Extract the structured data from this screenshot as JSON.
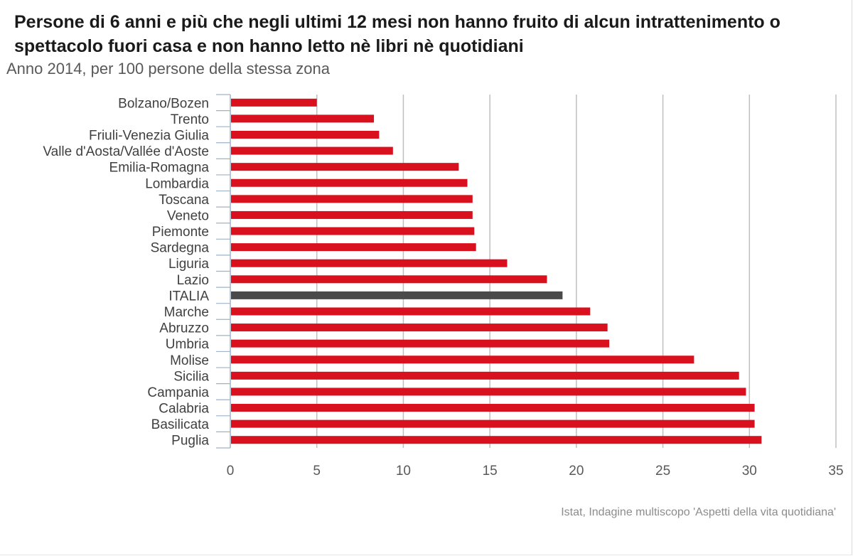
{
  "header": {
    "title": "Persone di 6 anni e più che negli ultimi 12 mesi non hanno fruito di alcun intrattenimento o spettacolo fuori casa e non hanno letto nè libri nè quotidiani",
    "subtitle": "Anno 2014, per 100 persone della stessa zona"
  },
  "footer": {
    "source": "Istat, Indagine multiscopo 'Aspetti della vita quotidiana'"
  },
  "colors": {
    "bar": "#d9101d",
    "highlight": "#4a4a4a",
    "grid": "#bfbfbf",
    "axis": "#9fb3c8"
  },
  "chart_data": {
    "type": "bar",
    "orientation": "horizontal",
    "title": "Persone di 6 anni e più che negli ultimi 12 mesi non hanno fruito di alcun intrattenimento o spettacolo fuori casa e non hanno letto nè libri nè quotidiani",
    "subtitle": "Anno 2014, per 100 persone della stessa zona",
    "categories": [
      "Bolzano/Bozen",
      "Trento",
      "Friuli-Venezia Giulia",
      "Valle d'Aosta/Vallée d'Aoste",
      "Emilia-Romagna",
      "Lombardia",
      "Toscana",
      "Veneto",
      "Piemonte",
      "Sardegna",
      "Liguria",
      "Lazio",
      "ITALIA",
      "Marche",
      "Abruzzo",
      "Umbria",
      "Molise",
      "Sicilia",
      "Campania",
      "Calabria",
      "Basilicata",
      "Puglia"
    ],
    "values": [
      5.0,
      8.3,
      8.6,
      9.4,
      13.2,
      13.7,
      14.0,
      14.0,
      14.1,
      14.2,
      16.0,
      18.3,
      19.2,
      20.8,
      21.8,
      21.9,
      26.8,
      29.4,
      29.8,
      30.3,
      30.3,
      30.7
    ],
    "highlight": "ITALIA",
    "xlim": [
      0,
      35
    ],
    "xticks": [
      0,
      5,
      10,
      15,
      20,
      25,
      30,
      35
    ],
    "grid": true,
    "xlabel": "",
    "ylabel": ""
  }
}
